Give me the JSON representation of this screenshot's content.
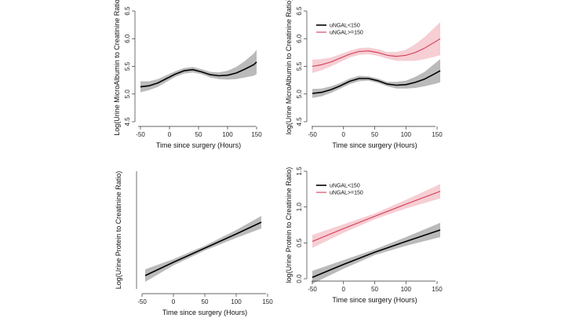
{
  "colors": {
    "black_line": "#000000",
    "red_line": "#d43a55",
    "grey_band": "#b3b3b3",
    "pink_band": "#f4c6cd",
    "axis": "#333333"
  },
  "chart_data": [
    {
      "id": "panel-top-left",
      "type": "line",
      "title": "",
      "xlabel": "Time since surgery (Hours)",
      "ylabel": "Log(Urine MicroAlbumin to Creatinine Ratio)",
      "xlim": [
        -50,
        150
      ],
      "ylim": [
        4.5,
        6.5
      ],
      "xticks": [
        "-50",
        "0",
        "50",
        "100",
        "150"
      ],
      "xtick_values": [
        -50,
        0,
        50,
        100,
        150
      ],
      "yticks": [
        "4.5",
        "5.0",
        "5.5",
        "6.0",
        "6.5"
      ],
      "ytick_values": [
        4.5,
        5.0,
        5.5,
        6.0,
        6.5
      ],
      "legend": [],
      "series": [
        {
          "color": "black",
          "x": [
            -50,
            -35,
            -20,
            -5,
            10,
            25,
            40,
            55,
            70,
            85,
            100,
            115,
            130,
            145,
            150
          ],
          "y": [
            5.13,
            5.15,
            5.2,
            5.28,
            5.36,
            5.42,
            5.44,
            5.4,
            5.35,
            5.33,
            5.34,
            5.38,
            5.45,
            5.53,
            5.58
          ],
          "lower": [
            5.03,
            5.07,
            5.13,
            5.22,
            5.31,
            5.37,
            5.39,
            5.36,
            5.3,
            5.27,
            5.26,
            5.27,
            5.3,
            5.33,
            5.36
          ],
          "upper": [
            5.23,
            5.23,
            5.27,
            5.34,
            5.41,
            5.47,
            5.49,
            5.45,
            5.4,
            5.39,
            5.42,
            5.49,
            5.6,
            5.73,
            5.8
          ]
        }
      ]
    },
    {
      "id": "panel-top-right",
      "type": "line",
      "title": "",
      "xlabel": "Time since surgery (Hours)",
      "ylabel": "log(Urine MicroAlbumin to Creatinine Ratio)",
      "xlim": [
        -50,
        150
      ],
      "ylim": [
        4.5,
        6.5
      ],
      "xticks": [
        "-50",
        "0",
        "50",
        "100",
        "150"
      ],
      "xtick_values": [
        -50,
        0,
        50,
        100,
        150
      ],
      "yticks": [
        "4.5",
        "5.0",
        "5.5",
        "6.0",
        "6.5"
      ],
      "ytick_values": [
        4.5,
        5.0,
        5.5,
        6.0,
        6.5
      ],
      "legend": [
        "uNGAL<150",
        "uNGAL>=150"
      ],
      "series": [
        {
          "name": "uNGAL<150",
          "color": "black",
          "x": [
            -50,
            -35,
            -20,
            -5,
            10,
            25,
            40,
            55,
            70,
            85,
            100,
            115,
            130,
            145,
            155
          ],
          "y": [
            5.01,
            5.03,
            5.08,
            5.15,
            5.23,
            5.28,
            5.28,
            5.24,
            5.18,
            5.16,
            5.17,
            5.21,
            5.27,
            5.36,
            5.42
          ],
          "lower": [
            4.93,
            4.96,
            5.02,
            5.1,
            5.18,
            5.23,
            5.24,
            5.2,
            5.14,
            5.1,
            5.1,
            5.11,
            5.14,
            5.18,
            5.21
          ],
          "upper": [
            5.09,
            5.1,
            5.14,
            5.2,
            5.28,
            5.33,
            5.32,
            5.28,
            5.22,
            5.22,
            5.24,
            5.31,
            5.4,
            5.54,
            5.63
          ]
        },
        {
          "name": "uNGAL>=150",
          "color": "red",
          "x": [
            -50,
            -35,
            -20,
            -5,
            10,
            25,
            40,
            55,
            70,
            85,
            100,
            115,
            130,
            145,
            155
          ],
          "y": [
            5.5,
            5.53,
            5.58,
            5.65,
            5.72,
            5.77,
            5.78,
            5.75,
            5.7,
            5.68,
            5.7,
            5.75,
            5.83,
            5.93,
            6.0
          ],
          "lower": [
            5.38,
            5.43,
            5.5,
            5.58,
            5.66,
            5.71,
            5.72,
            5.69,
            5.64,
            5.6,
            5.6,
            5.6,
            5.63,
            5.67,
            5.7
          ],
          "upper": [
            5.62,
            5.63,
            5.66,
            5.72,
            5.78,
            5.83,
            5.84,
            5.81,
            5.76,
            5.76,
            5.8,
            5.9,
            6.03,
            6.19,
            6.3
          ]
        }
      ]
    },
    {
      "id": "panel-bottom-left",
      "type": "line",
      "title": "",
      "xlabel": "Time since surgery (Hours)",
      "ylabel": "Log(Urine Protein to Creatinine Ratio)",
      "xlim": [
        -50,
        150
      ],
      "ylim": [
        0.0,
        1.5
      ],
      "xticks": [
        "-50",
        "0",
        "50",
        "100",
        "150"
      ],
      "xtick_values": [
        -50,
        0,
        50,
        100,
        150
      ],
      "yticks": [],
      "ytick_values": [],
      "legend": [],
      "series": [
        {
          "color": "black",
          "x": [
            -45,
            0,
            50,
            100,
            140
          ],
          "y": [
            0.17,
            0.34,
            0.52,
            0.7,
            0.85
          ],
          "lower": [
            0.09,
            0.3,
            0.49,
            0.65,
            0.77
          ],
          "upper": [
            0.25,
            0.38,
            0.55,
            0.75,
            0.93
          ]
        }
      ]
    },
    {
      "id": "panel-bottom-right",
      "type": "line",
      "title": "",
      "xlabel": "Time since surgery (Hours)",
      "ylabel": "log(Urine Protein to Creatinine Ratio)",
      "xlim": [
        -50,
        150
      ],
      "ylim": [
        0.0,
        1.5
      ],
      "xticks": [
        "-50",
        "0",
        "50",
        "100",
        "150"
      ],
      "xtick_values": [
        -50,
        0,
        50,
        100,
        150
      ],
      "yticks": [
        "0.0",
        "0.5",
        "1.0",
        "1.5"
      ],
      "ytick_values": [
        0.0,
        0.5,
        1.0,
        1.5
      ],
      "legend": [
        "uNGAL<150",
        "uNGAL>=150"
      ],
      "series": [
        {
          "name": "uNGAL<150",
          "color": "black",
          "x": [
            -50,
            0,
            50,
            100,
            155
          ],
          "y": [
            0.02,
            0.2,
            0.37,
            0.52,
            0.68
          ],
          "lower": [
            -0.07,
            0.14,
            0.33,
            0.46,
            0.58
          ],
          "upper": [
            0.11,
            0.26,
            0.41,
            0.58,
            0.78
          ]
        },
        {
          "name": "uNGAL>=150",
          "color": "red",
          "x": [
            -50,
            0,
            50,
            100,
            155
          ],
          "y": [
            0.52,
            0.7,
            0.87,
            1.04,
            1.22
          ],
          "lower": [
            0.43,
            0.64,
            0.83,
            0.98,
            1.12
          ],
          "upper": [
            0.61,
            0.76,
            0.91,
            1.1,
            1.32
          ]
        }
      ]
    }
  ]
}
